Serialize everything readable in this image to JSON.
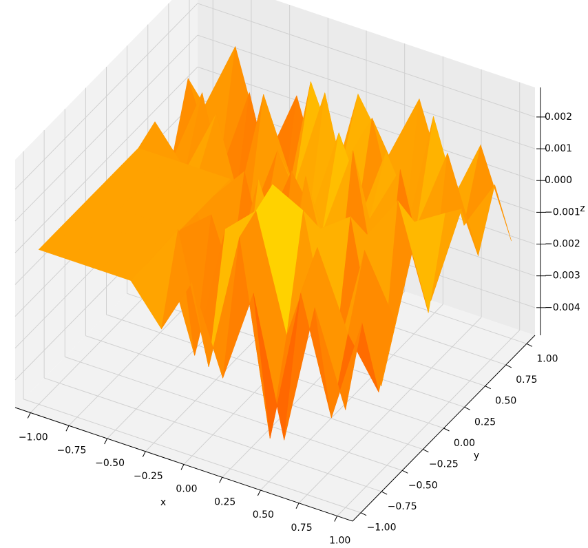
{
  "chart_data": {
    "type": "surface3d",
    "x": [
      -1,
      -0.8,
      -0.6,
      -0.4,
      -0.2,
      0,
      0.2,
      0.4,
      0.6,
      0.8,
      1
    ],
    "y": [
      -1,
      -0.8,
      -0.6,
      -0.4,
      -0.2,
      0,
      0.2,
      0.4,
      0.6,
      0.8,
      1
    ],
    "z": [
      [
        0,
        0,
        0,
        0,
        -0.0012,
        0.0006,
        -0.0021,
        0.0009,
        -0.0034,
        0.0011,
        -0.0018
      ],
      [
        0,
        0,
        0,
        0,
        0.0014,
        -0.0026,
        0.0018,
        -0.0042,
        0.0007,
        -0.0029,
        0.0004
      ],
      [
        0,
        0,
        0,
        0,
        -0.0031,
        0.0012,
        0.0021,
        -0.0015,
        0.0016,
        -0.0008,
        -0.0023
      ],
      [
        0,
        0,
        0,
        0,
        0.0008,
        -0.0019,
        0.0024,
        0.0019,
        -0.0027,
        0.0013,
        -0.0006
      ],
      [
        0,
        0,
        0,
        0,
        -0.0024,
        0.0017,
        -0.0011,
        0.0008,
        0.0015,
        -0.0035,
        0.001
      ],
      [
        0,
        0,
        0,
        0,
        0.0011,
        -0.0038,
        0.0016,
        -0.0022,
        0.0004,
        0.0018,
        -0.0014
      ],
      [
        0,
        0,
        0,
        0,
        -0.0016,
        0.0009,
        -0.0007,
        0.0022,
        -0.0031,
        0.0006,
        0.0012
      ],
      [
        0.0003,
        -0.0009,
        0.0012,
        -0.0021,
        0.0007,
        -0.0013,
        0.0019,
        -0.0005,
        0.0014,
        -0.0024,
        0.0008
      ],
      [
        -0.0015,
        0.001,
        -0.0028,
        0.0016,
        -0.001,
        0.0023,
        -0.0017,
        0.0011,
        -0.0009,
        0.0017,
        -0.0012
      ],
      [
        0.0006,
        -0.0022,
        0.0008,
        -0.0033,
        0.0018,
        -0.0006,
        0.0013,
        -0.0025,
        0.002,
        -0.0011,
        0.0005
      ],
      [
        -0.0008,
        0.0014,
        -0.0019,
        0.0005,
        -0.0026,
        0.0012,
        -0.0004,
        0.0017,
        -0.0013,
        0.0009,
        -0.0018
      ]
    ],
    "colormap": "autumn",
    "xlim": [
      -1.1,
      1.1
    ],
    "ylim": [
      -1.1,
      1.1
    ],
    "zlim": [
      -0.00487,
      0.00293
    ],
    "xticks": [
      {
        "value": -1,
        "label": "−1.00"
      },
      {
        "value": -0.75,
        "label": "−0.75"
      },
      {
        "value": -0.5,
        "label": "−0.50"
      },
      {
        "value": -0.25,
        "label": "−0.25"
      },
      {
        "value": 0,
        "label": "0.00"
      },
      {
        "value": 0.25,
        "label": "0.25"
      },
      {
        "value": 0.5,
        "label": "0.50"
      },
      {
        "value": 0.75,
        "label": "0.75"
      },
      {
        "value": 1,
        "label": "1.00"
      }
    ],
    "yticks": [
      {
        "value": -1,
        "label": "−1.00"
      },
      {
        "value": -0.75,
        "label": "−0.75"
      },
      {
        "value": -0.5,
        "label": "−0.50"
      },
      {
        "value": -0.25,
        "label": "−0.25"
      },
      {
        "value": 0,
        "label": "0.00"
      },
      {
        "value": 0.25,
        "label": "0.25"
      },
      {
        "value": 0.5,
        "label": "0.50"
      },
      {
        "value": 0.75,
        "label": "0.75"
      },
      {
        "value": 1,
        "label": "1.00"
      }
    ],
    "zticks": [
      {
        "value": -0.004,
        "label": "−0.004"
      },
      {
        "value": -0.003,
        "label": "−0.003"
      },
      {
        "value": -0.002,
        "label": "−0.002"
      },
      {
        "value": -0.001,
        "label": "−0.001"
      },
      {
        "value": 0,
        "label": "0.000"
      },
      {
        "value": 0.001,
        "label": "0.001"
      },
      {
        "value": 0.002,
        "label": "0.002"
      }
    ],
    "xlabel": "x",
    "ylabel": "y",
    "zlabel": "z",
    "grid": true
  }
}
